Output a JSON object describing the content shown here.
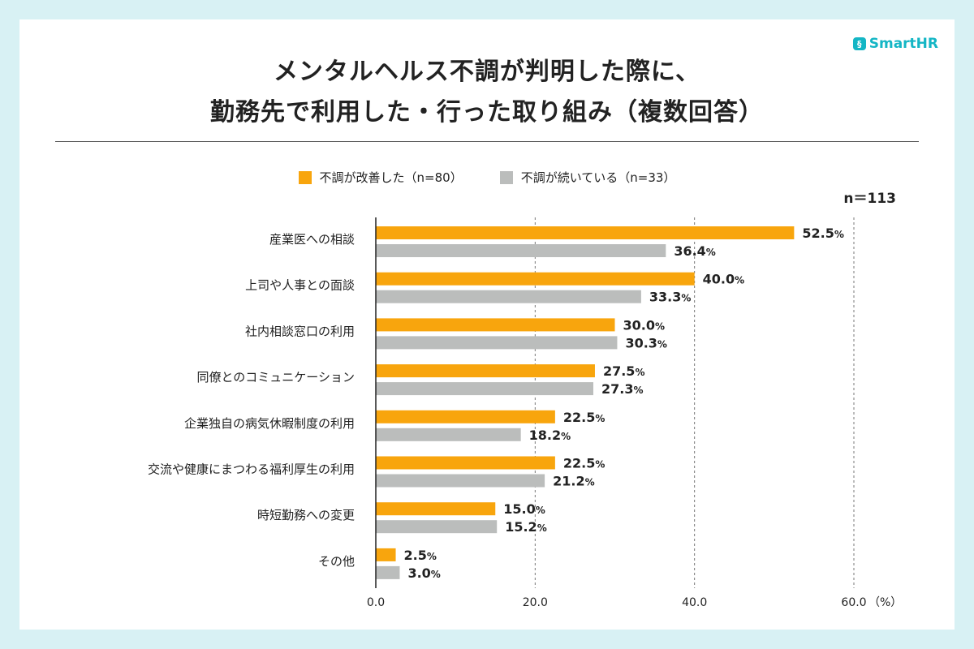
{
  "brand": {
    "name": "SmartHR",
    "icon": "smarthr-logo-icon"
  },
  "title": {
    "line1": "メンタルヘルス不調が判明した際に、",
    "line2": "勤務先で利用した・行った取り組み（複数回答）"
  },
  "sample_size": "n＝113",
  "colors": {
    "improved": "#f8a50d",
    "continuing": "#bbbdbc",
    "accent": "#14b6c5",
    "background": "#d8f1f4"
  },
  "chart_data": {
    "type": "bar",
    "orientation": "horizontal",
    "title": "メンタルヘルス不調が判明した際に、勤務先で利用した・行った取り組み（複数回答）",
    "categories": [
      "産業医への相談",
      "上司や人事との面談",
      "社内相談窓口の利用",
      "同僚とのコミュニケーション",
      "企業独自の病気休暇制度の利用",
      "交流や健康にまつわる福利厚生の利用",
      "時短勤務への変更",
      "その他"
    ],
    "series": [
      {
        "name": "不調が改善した（n=80）",
        "values": [
          52.5,
          40.0,
          30.0,
          27.5,
          22.5,
          22.5,
          15.0,
          2.5
        ]
      },
      {
        "name": "不調が続いている（n=33）",
        "values": [
          36.4,
          33.3,
          30.3,
          27.3,
          18.2,
          21.2,
          15.2,
          3.0
        ]
      }
    ],
    "xlim": [
      0,
      60
    ],
    "xticks": [
      "0.0",
      "20.0",
      "40.0",
      "60.0"
    ],
    "xticks_values": [
      0,
      20,
      40,
      60
    ],
    "unit_label": "（%）",
    "value_suffix": "%",
    "grid": true
  }
}
